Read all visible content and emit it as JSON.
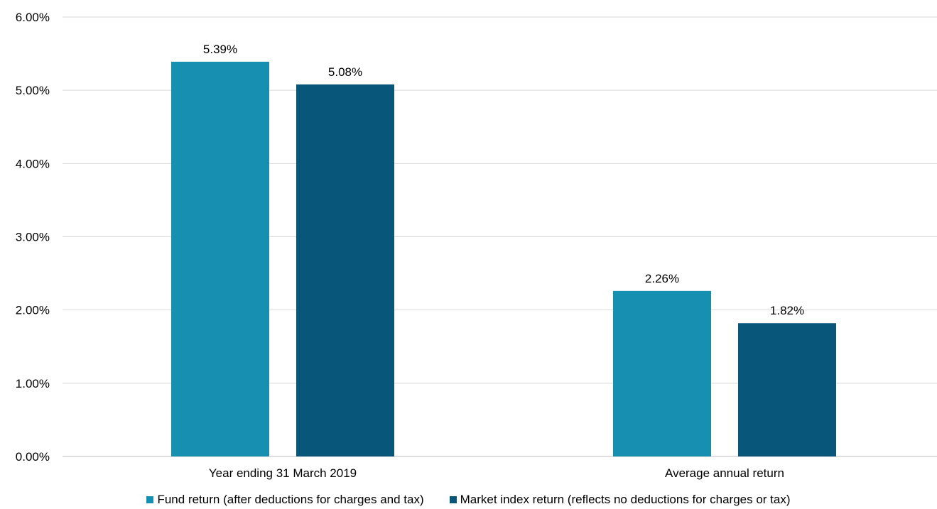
{
  "chart_data": {
    "type": "bar",
    "title": "",
    "xlabel": "",
    "ylabel": "",
    "categories": [
      "Year ending 31 March 2019",
      "Average annual return"
    ],
    "series": [
      {
        "name": "Fund return (after deductions for charges and tax)",
        "values": [
          5.39,
          2.26
        ],
        "labels": [
          "5.39%",
          "2.26%"
        ],
        "color": "#178FB0"
      },
      {
        "name": "Market index return (reflects no deductions for charges or tax)",
        "values": [
          5.08,
          1.82
        ],
        "labels": [
          "5.08%",
          "1.82%"
        ],
        "color": "#08577A"
      }
    ],
    "ylim": [
      0,
      6
    ],
    "yticks": [
      0,
      1,
      2,
      3,
      4,
      5,
      6
    ],
    "ytick_labels": [
      "0.00%",
      "1.00%",
      "2.00%",
      "3.00%",
      "4.00%",
      "5.00%",
      "6.00%"
    ],
    "grid": true,
    "legend_position": "bottom",
    "colors": {
      "gridline": "#D9D9D9",
      "axis": "#BFBFBF"
    }
  }
}
